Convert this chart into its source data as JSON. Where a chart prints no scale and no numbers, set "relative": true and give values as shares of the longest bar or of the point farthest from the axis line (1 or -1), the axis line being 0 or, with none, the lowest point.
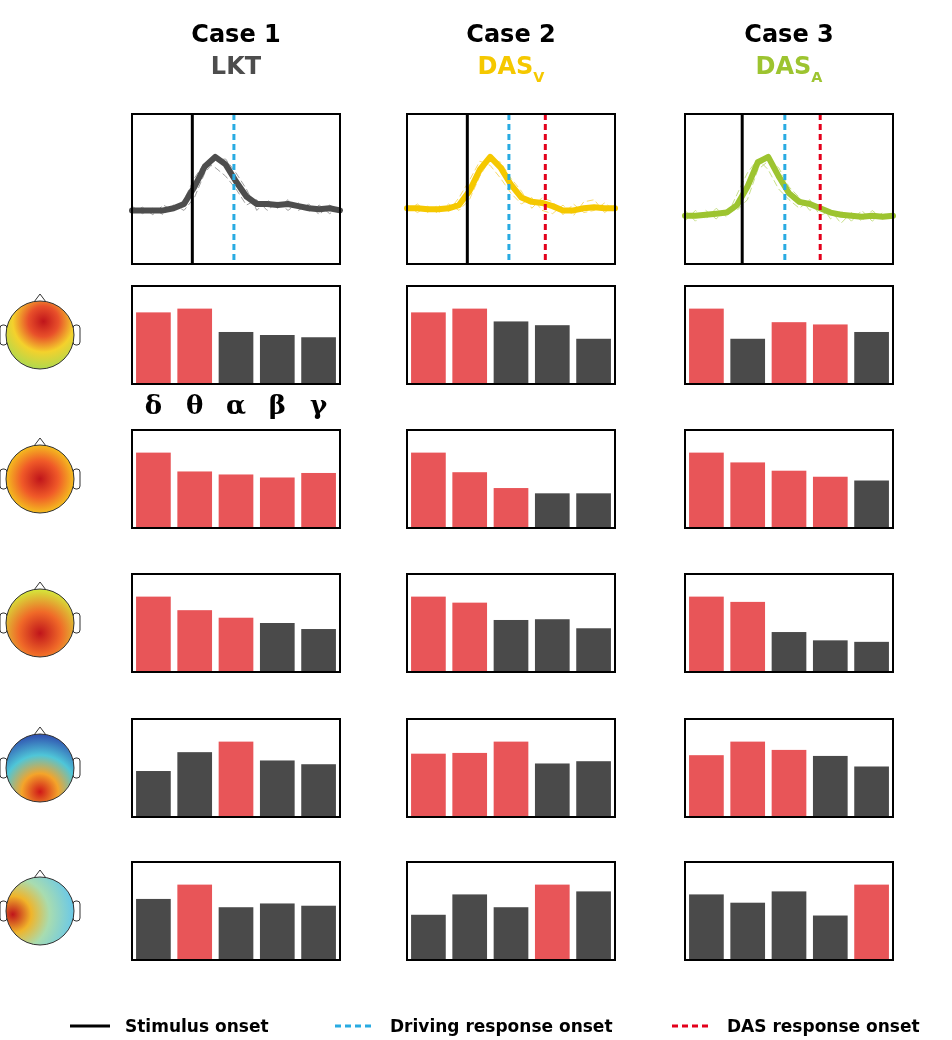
{
  "chart_data": [
    {
      "type": "line",
      "title": "Case 1",
      "subtitle": "LKT",
      "relative": true,
      "categories": [
        null,
        null,
        null,
        null,
        null,
        null,
        null,
        null,
        null,
        null,
        null,
        null,
        null,
        null,
        null,
        null,
        null,
        null,
        null,
        null,
        null
      ],
      "series": [
        {
          "color": "#4d4d4d",
          "line_style": "solid",
          "values": [
            0.5,
            0.5,
            0.5,
            0.5,
            0.52,
            0.56,
            0.72,
            0.91,
            1,
            0.93,
            0.77,
            0.63,
            0.56,
            0.56,
            0.55,
            0.56,
            0.54,
            0.52,
            0.51,
            0.52,
            0.5
          ]
        },
        {
          "color": "#a0a0a0",
          "line_style": "dashed",
          "values": [
            0.48,
            0.53,
            0.46,
            0.55,
            0.5,
            0.6,
            0.8,
            0.95,
            0.9,
            0.82,
            0.7,
            0.55,
            0.6,
            0.5,
            0.58,
            0.5,
            0.57,
            0.49,
            0.55,
            0.47,
            0.52
          ]
        },
        {
          "color": "#a0a0a0",
          "line_style": "dashed",
          "values": [
            0.54,
            0.47,
            0.52,
            0.46,
            0.55,
            0.5,
            0.62,
            0.85,
            0.97,
            0.98,
            0.85,
            0.7,
            0.5,
            0.6,
            0.52,
            0.6,
            0.5,
            0.56,
            0.46,
            0.55,
            0.49
          ]
        }
      ],
      "annotations": [
        "Stimulus onset",
        "Driving response onset",
        "DAS response onset"
      ]
    },
    {
      "type": "line",
      "title": "Case 2",
      "subtitle": "DAS$_{V}$",
      "relative": true,
      "categories": [
        null,
        null,
        null,
        null,
        null,
        null,
        null,
        null,
        null,
        null,
        null,
        null,
        null,
        null,
        null,
        null,
        null,
        null,
        null,
        null,
        null
      ],
      "series": [
        {
          "color": "#f5c800",
          "line_style": "solid",
          "values": [
            0.52,
            0.52,
            0.51,
            0.51,
            0.52,
            0.55,
            0.68,
            0.88,
            1,
            0.9,
            0.74,
            0.62,
            0.58,
            0.57,
            0.54,
            0.5,
            0.5,
            0.52,
            0.53,
            0.52,
            0.52
          ]
        },
        {
          "color": "#f8dc6e",
          "line_style": "dashed",
          "values": [
            0.5,
            0.56,
            0.48,
            0.55,
            0.49,
            0.62,
            0.78,
            0.96,
            0.92,
            0.8,
            0.66,
            0.56,
            0.62,
            0.5,
            0.47,
            0.55,
            0.45,
            0.58,
            0.6,
            0.48,
            0.55
          ]
        },
        {
          "color": "#f8dc6e",
          "line_style": "dashed",
          "values": [
            0.55,
            0.48,
            0.54,
            0.47,
            0.56,
            0.5,
            0.6,
            0.82,
            0.98,
            0.95,
            0.8,
            0.68,
            0.52,
            0.62,
            0.58,
            0.46,
            0.56,
            0.48,
            0.5,
            0.57,
            0.5
          ]
        }
      ]
    },
    {
      "type": "line",
      "title": "Case 3",
      "subtitle": "DAS$_{A}$",
      "relative": true,
      "categories": [
        null,
        null,
        null,
        null,
        null,
        null,
        null,
        null,
        null,
        null,
        null,
        null,
        null,
        null,
        null,
        null,
        null,
        null,
        null,
        null,
        null
      ],
      "series": [
        {
          "color": "#9dc430",
          "line_style": "solid",
          "values": [
            0.45,
            0.45,
            0.46,
            0.47,
            0.48,
            0.55,
            0.72,
            0.95,
            1,
            0.82,
            0.66,
            0.58,
            0.56,
            0.52,
            0.48,
            0.46,
            0.45,
            0.44,
            0.45,
            0.44,
            0.45
          ]
        },
        {
          "color": "#c8e08a",
          "line_style": "dashed",
          "values": [
            0.4,
            0.5,
            0.42,
            0.52,
            0.44,
            0.65,
            0.85,
            0.98,
            0.88,
            0.7,
            0.6,
            0.52,
            0.6,
            0.45,
            0.5,
            0.38,
            0.48,
            0.4,
            0.5,
            0.42,
            0.47
          ]
        },
        {
          "color": "#c8e08a",
          "line_style": "dashed",
          "values": [
            0.5,
            0.4,
            0.5,
            0.42,
            0.52,
            0.5,
            0.6,
            0.88,
            0.96,
            0.9,
            0.72,
            0.62,
            0.5,
            0.56,
            0.42,
            0.5,
            0.4,
            0.5,
            0.4,
            0.48,
            0.42
          ]
        }
      ]
    },
    {
      "type": "bar",
      "relative": true,
      "tick_labels": "x",
      "categories": [
        "δ",
        "θ",
        "α",
        "β",
        "γ"
      ],
      "values": [
        0.95,
        1,
        0.69,
        0.65,
        0.62
      ],
      "colors": [
        "#e85558",
        "#e85558",
        "#4a4a4a",
        "#4a4a4a",
        "#4a4a4a"
      ]
    },
    {
      "type": "bar",
      "relative": true,
      "tick_labels": false,
      "categories": [
        null,
        null,
        null,
        null,
        null
      ],
      "values": [
        0.95,
        1,
        0.83,
        0.78,
        0.6
      ],
      "colors": [
        "#e85558",
        "#e85558",
        "#4a4a4a",
        "#4a4a4a",
        "#4a4a4a"
      ]
    },
    {
      "type": "bar",
      "relative": true,
      "tick_labels": false,
      "categories": [
        null,
        null,
        null,
        null,
        null
      ],
      "values": [
        1,
        0.6,
        0.82,
        0.79,
        0.69
      ],
      "colors": [
        "#e85558",
        "#4a4a4a",
        "#e85558",
        "#e85558",
        "#4a4a4a"
      ]
    },
    {
      "type": "bar",
      "relative": true,
      "tick_labels": false,
      "categories": [
        null,
        null,
        null,
        null,
        null
      ],
      "values": [
        1,
        0.75,
        0.71,
        0.67,
        0.73
      ],
      "colors": [
        "#e85558",
        "#e85558",
        "#e85558",
        "#e85558",
        "#e85558"
      ]
    },
    {
      "type": "bar",
      "relative": true,
      "tick_labels": false,
      "categories": [
        null,
        null,
        null,
        null,
        null
      ],
      "values": [
        1,
        0.74,
        0.53,
        0.46,
        0.46
      ],
      "colors": [
        "#e85558",
        "#e85558",
        "#e85558",
        "#4a4a4a",
        "#4a4a4a"
      ]
    },
    {
      "type": "bar",
      "relative": true,
      "tick_labels": false,
      "categories": [
        null,
        null,
        null,
        null,
        null
      ],
      "values": [
        1,
        0.87,
        0.76,
        0.68,
        0.63
      ],
      "colors": [
        "#e85558",
        "#e85558",
        "#e85558",
        "#e85558",
        "#4a4a4a"
      ]
    },
    {
      "type": "bar",
      "relative": true,
      "tick_labels": false,
      "categories": [
        null,
        null,
        null,
        null,
        null
      ],
      "values": [
        1,
        0.82,
        0.72,
        0.65,
        0.57
      ],
      "colors": [
        "#e85558",
        "#e85558",
        "#e85558",
        "#4a4a4a",
        "#4a4a4a"
      ]
    },
    {
      "type": "bar",
      "relative": true,
      "tick_labels": false,
      "categories": [
        null,
        null,
        null,
        null,
        null
      ],
      "values": [
        1,
        0.92,
        0.69,
        0.7,
        0.58
      ],
      "colors": [
        "#e85558",
        "#e85558",
        "#4a4a4a",
        "#4a4a4a",
        "#4a4a4a"
      ]
    },
    {
      "type": "bar",
      "relative": true,
      "tick_labels": false,
      "categories": [
        null,
        null,
        null,
        null,
        null
      ],
      "values": [
        1,
        0.93,
        0.53,
        0.42,
        0.4
      ],
      "colors": [
        "#e85558",
        "#e85558",
        "#4a4a4a",
        "#4a4a4a",
        "#4a4a4a"
      ]
    },
    {
      "type": "bar",
      "relative": true,
      "tick_labels": false,
      "categories": [
        null,
        null,
        null,
        null,
        null
      ],
      "values": [
        0.61,
        0.86,
        1,
        0.75,
        0.7
      ],
      "colors": [
        "#4a4a4a",
        "#4a4a4a",
        "#e85558",
        "#4a4a4a",
        "#4a4a4a"
      ]
    },
    {
      "type": "bar",
      "relative": true,
      "tick_labels": false,
      "categories": [
        null,
        null,
        null,
        null,
        null
      ],
      "values": [
        0.84,
        0.85,
        1,
        0.71,
        0.74
      ],
      "colors": [
        "#e85558",
        "#e85558",
        "#e85558",
        "#4a4a4a",
        "#4a4a4a"
      ]
    },
    {
      "type": "bar",
      "relative": true,
      "tick_labels": false,
      "categories": [
        null,
        null,
        null,
        null,
        null
      ],
      "values": [
        0.82,
        1,
        0.89,
        0.81,
        0.67
      ],
      "colors": [
        "#e85558",
        "#e85558",
        "#e85558",
        "#4a4a4a",
        "#4a4a4a"
      ]
    },
    {
      "type": "bar",
      "relative": true,
      "tick_labels": false,
      "categories": [
        null,
        null,
        null,
        null,
        null
      ],
      "values": [
        0.81,
        1,
        0.7,
        0.75,
        0.72
      ],
      "colors": [
        "#4a4a4a",
        "#e85558",
        "#4a4a4a",
        "#4a4a4a",
        "#4a4a4a"
      ]
    },
    {
      "type": "bar",
      "relative": true,
      "tick_labels": false,
      "categories": [
        null,
        null,
        null,
        null,
        null
      ],
      "values": [
        0.6,
        0.87,
        0.7,
        1,
        0.91
      ],
      "colors": [
        "#4a4a4a",
        "#4a4a4a",
        "#4a4a4a",
        "#e85558",
        "#4a4a4a"
      ]
    },
    {
      "type": "bar",
      "relative": true,
      "tick_labels": false,
      "categories": [
        null,
        null,
        null,
        null,
        null
      ],
      "values": [
        0.87,
        0.76,
        0.91,
        0.59,
        1
      ],
      "colors": [
        "#4a4a4a",
        "#4a4a4a",
        "#4a4a4a",
        "#4a4a4a",
        "#e85558"
      ]
    }
  ]
}
